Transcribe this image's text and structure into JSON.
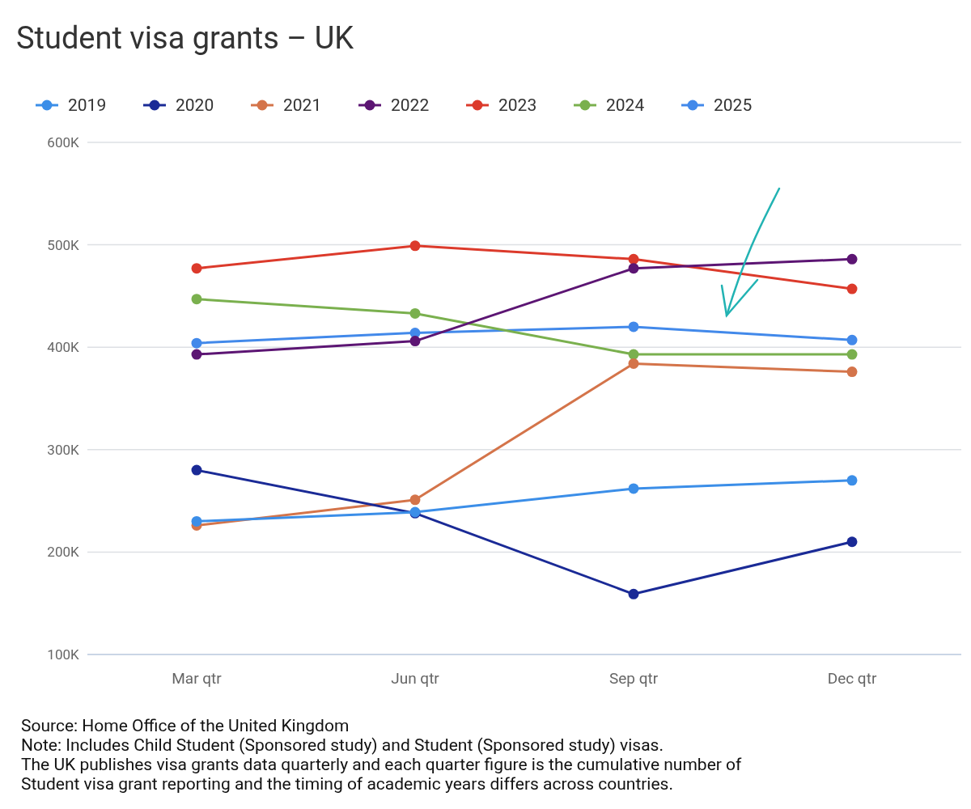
{
  "chart_data": {
    "type": "line",
    "title": "Student visa grants – UK",
    "categories": [
      "Mar qtr",
      "Jun qtr",
      "Sep qtr",
      "Dec qtr"
    ],
    "series": [
      {
        "name": "2019",
        "color": "#3b8ee8",
        "values": [
          230,
          239,
          262,
          270
        ]
      },
      {
        "name": "2020",
        "color": "#1a2a96",
        "values": [
          280,
          238,
          159,
          210
        ]
      },
      {
        "name": "2021",
        "color": "#d4744a",
        "values": [
          226,
          251,
          384,
          376
        ]
      },
      {
        "name": "2022",
        "color": "#5c1573",
        "values": [
          393,
          406,
          477,
          486
        ]
      },
      {
        "name": "2023",
        "color": "#dc3a2b",
        "values": [
          477,
          499,
          486,
          457
        ]
      },
      {
        "name": "2024",
        "color": "#7ab04e",
        "values": [
          447,
          433,
          393,
          393
        ]
      },
      {
        "name": "2025",
        "color": "#4289ea",
        "values": [
          404,
          414,
          420,
          407
        ]
      }
    ],
    "ylim": [
      100,
      600
    ],
    "yticks": [
      {
        "value": 100,
        "label": "100K"
      },
      {
        "value": 200,
        "label": "200K"
      },
      {
        "value": 300,
        "label": "300K"
      },
      {
        "value": 400,
        "label": "400K"
      },
      {
        "value": 500,
        "label": "500K"
      },
      {
        "value": 600,
        "label": "600K"
      }
    ],
    "grid": "y",
    "legend": "top left",
    "marker": "circle",
    "line_style": "solid",
    "annotations": [
      "Source: Home Office of the United Kingdom",
      "Note: Includes Child Student (Sponsored study) and Student (Sponsored study) visas.",
      "The UK publishes visa grants data quarterly and each quarter figure is the cumulative number of",
      "Student visa grant reporting and the timing of academic years differs across countries."
    ]
  }
}
